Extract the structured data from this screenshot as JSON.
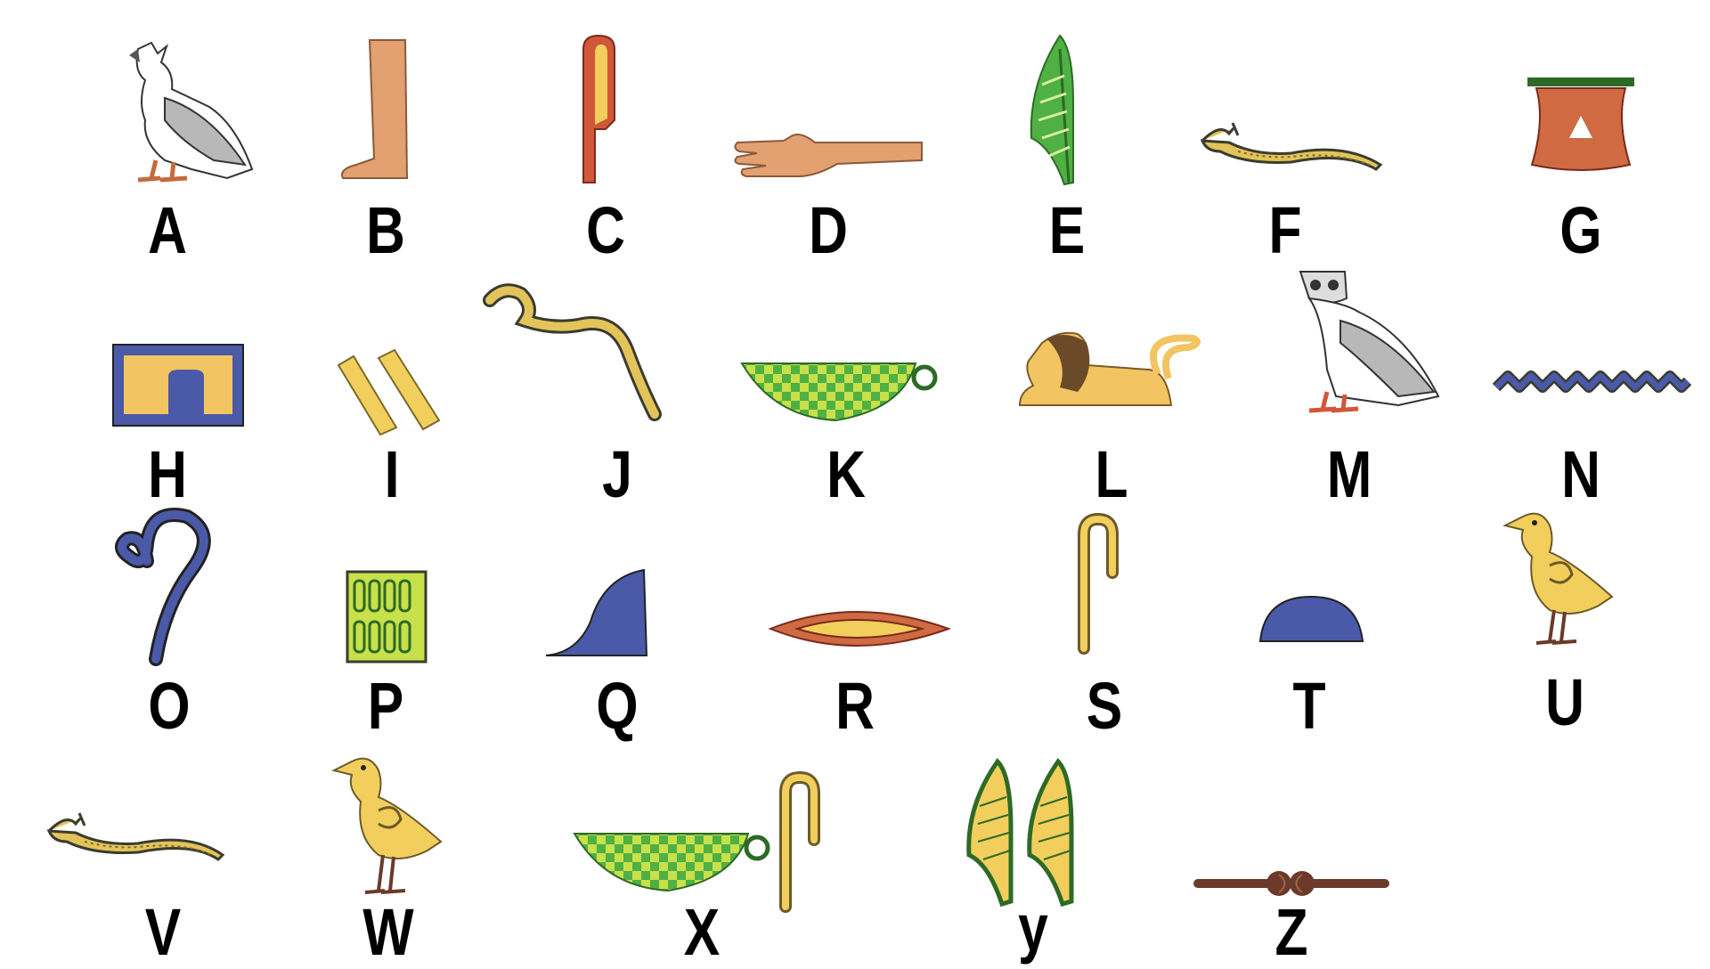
{
  "letters": {
    "A": "A",
    "B": "B",
    "C": "C",
    "D": "D",
    "E": "E",
    "F": "F",
    "G": "G",
    "H": "H",
    "I": "I",
    "J": "J",
    "K": "K",
    "L": "L",
    "M": "M",
    "N": "N",
    "O": "O",
    "P": "P",
    "Q": "Q",
    "R": "R",
    "S": "S",
    "T": "T",
    "U": "U",
    "V": "V",
    "W": "W",
    "X": "X",
    "Y": "y",
    "Z": "Z"
  },
  "glyphs": {
    "A": "vulture-icon",
    "B": "foot-icon",
    "C": "folded-cloth-icon",
    "D": "forearm-icon",
    "E": "reed-leaf-icon",
    "F": "horned-viper-icon",
    "G": "jar-stand-icon",
    "H": "courtyard-icon",
    "I": "double-strokes-icon",
    "J": "cobra-icon",
    "K": "basket-icon",
    "L": "lion-icon",
    "M": "owl-icon",
    "N": "water-ripple-icon",
    "O": "lasso-icon",
    "P": "reed-mat-icon",
    "Q": "hill-slope-icon",
    "R": "mouth-icon",
    "S": "folded-cloth-staff-icon",
    "T": "bread-loaf-icon",
    "U": "quail-chick-icon",
    "V": "horned-viper-icon",
    "W": "quail-chick-icon",
    "X": "basket-and-cloth-icon",
    "Y": "double-reed-icon",
    "Z": "door-bolt-icon"
  },
  "colors": {
    "blue": "#4a5aa8",
    "yellow": "#f2cf5c",
    "gold": "#e2c45a",
    "green": "#4fb043",
    "lime": "#c8e04a",
    "red": "#d0573a",
    "skin": "#e3a070",
    "terracotta": "#cf6a43",
    "gray": "#b8b8b8",
    "dark": "#3b3b2f",
    "brown": "#6b3a2a"
  }
}
